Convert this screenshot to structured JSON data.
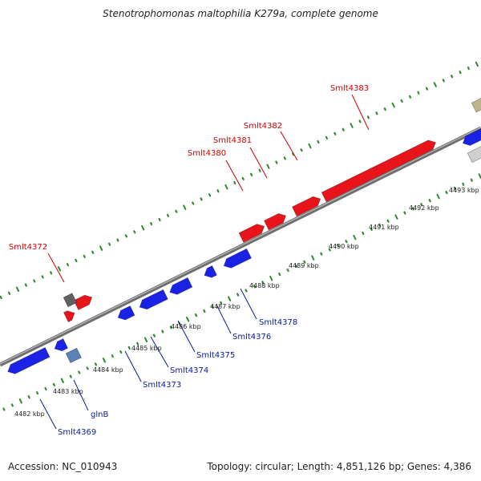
{
  "title": "Stenotrophomonas maltophilia K279a, complete genome",
  "footer": {
    "accession": "Accession: NC_010943",
    "summary": "Topology: circular; Length: 4,851,126 bp; Genes: 4,386"
  },
  "colors": {
    "forward_gene": "#e8141a",
    "reverse_gene": "#1a22e6",
    "other_gene": "#5b82b6",
    "pseudo_gene": "#606060",
    "backbone": "#8a8a8a",
    "tick": "#2e8b2e",
    "label_forward": "#d00000",
    "label_reverse": "#0a1a9a"
  },
  "kbp_ticks": [
    {
      "label": "4482 kbp",
      "kbp": 4482
    },
    {
      "label": "4483 kbp",
      "kbp": 4483
    },
    {
      "label": "4484 kbp",
      "kbp": 4484
    },
    {
      "label": "4485 kbp",
      "kbp": 4485
    },
    {
      "label": "4486 kbp",
      "kbp": 4486
    },
    {
      "label": "4487 kbp",
      "kbp": 4487
    },
    {
      "label": "4488 kbp",
      "kbp": 4488
    },
    {
      "label": "4489 kbp",
      "kbp": 4489
    },
    {
      "label": "4490 kbp",
      "kbp": 4490
    },
    {
      "label": "4491 kbp",
      "kbp": 4491
    },
    {
      "label": "4492 kbp",
      "kbp": 4492
    },
    {
      "label": "4493 kbp",
      "kbp": 4493
    }
  ],
  "gene_labels": [
    {
      "text": "Smlt4383",
      "strand": "forward"
    },
    {
      "text": "Smlt4382",
      "strand": "forward"
    },
    {
      "text": "Smlt4381",
      "strand": "forward"
    },
    {
      "text": "Smlt4380",
      "strand": "forward"
    },
    {
      "text": "Smlt4372",
      "strand": "forward"
    },
    {
      "text": "Smlt4378",
      "strand": "reverse"
    },
    {
      "text": "Smlt4376",
      "strand": "reverse"
    },
    {
      "text": "Smlt4375",
      "strand": "reverse"
    },
    {
      "text": "Smlt4374",
      "strand": "reverse"
    },
    {
      "text": "Smlt4373",
      "strand": "reverse"
    },
    {
      "text": "glnB",
      "strand": "reverse"
    },
    {
      "text": "Smlt4369",
      "strand": "reverse"
    }
  ]
}
